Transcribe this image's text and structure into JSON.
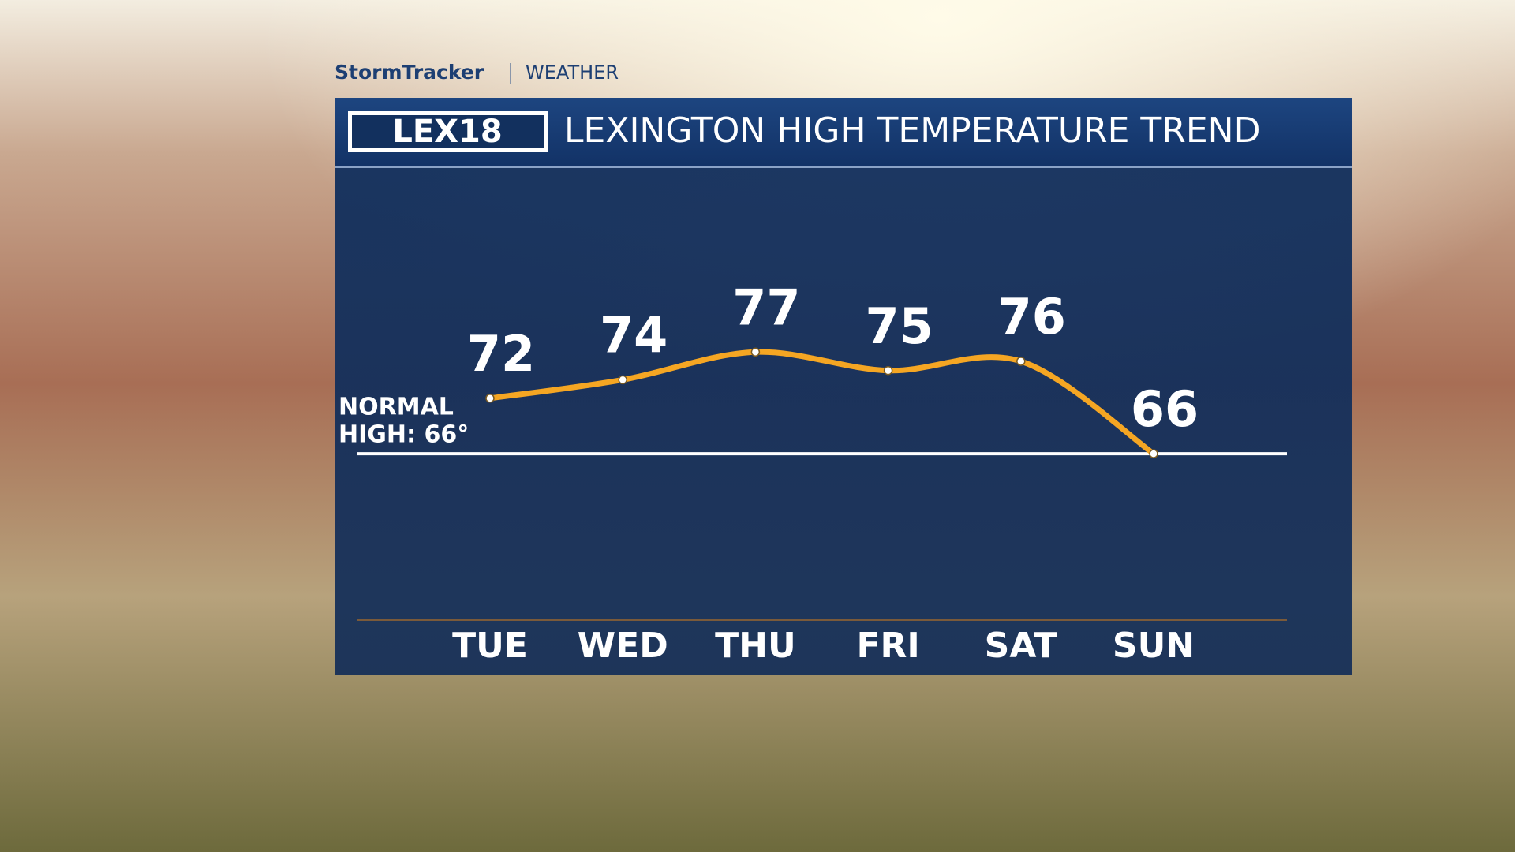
{
  "header": {
    "brand": "StormTracker",
    "section": "WEATHER",
    "logo": "LEX18"
  },
  "chart_data": {
    "type": "line",
    "title": "LEXINGTON HIGH TEMPERATURE TREND",
    "categories": [
      "TUE",
      "WED",
      "THU",
      "FRI",
      "SAT",
      "SUN"
    ],
    "values": [
      72,
      74,
      77,
      75,
      76,
      66
    ],
    "color": "#f5a623",
    "ylim": [
      48,
      97
    ],
    "reference_line": {
      "value": 66,
      "label": [
        "NORMAL",
        "HIGH: 66°"
      ]
    }
  }
}
